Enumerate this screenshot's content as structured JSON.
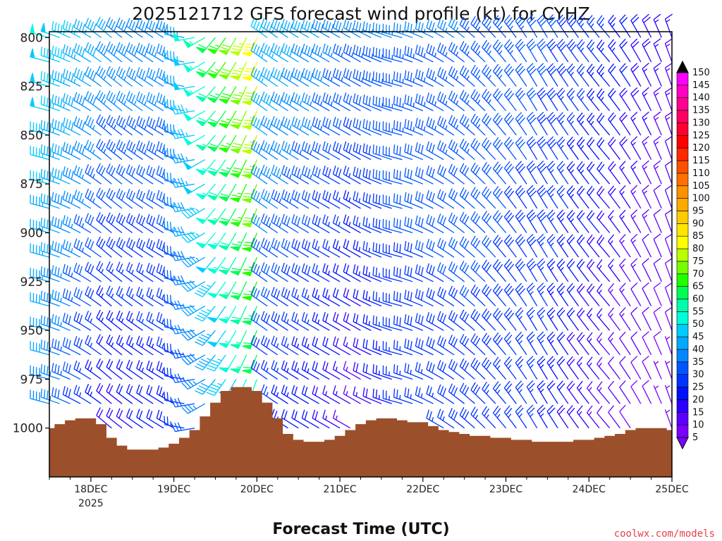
{
  "chart_data": {
    "type": "wind_profile",
    "title": "2025121712 GFS forecast wind profile (kt) for CYHZ",
    "xlabel": "Forecast Time (UTC)",
    "ylabel": "",
    "credit": "coolwx.com/models",
    "x_range_hours": [
      -12,
      168
    ],
    "x_ticks": [
      {
        "hour": 0,
        "label": "18DEC",
        "sublabel": "2025"
      },
      {
        "hour": 24,
        "label": "19DEC",
        "sublabel": ""
      },
      {
        "hour": 48,
        "label": "20DEC",
        "sublabel": ""
      },
      {
        "hour": 72,
        "label": "21DEC",
        "sublabel": ""
      },
      {
        "hour": 96,
        "label": "22DEC",
        "sublabel": ""
      },
      {
        "hour": 120,
        "label": "23DEC",
        "sublabel": ""
      },
      {
        "hour": 144,
        "label": "24DEC",
        "sublabel": ""
      },
      {
        "hour": 168,
        "label": "25DEC",
        "sublabel": ""
      }
    ],
    "y_axis": {
      "min_hpa": 797,
      "max_hpa": 1025,
      "inverted": true
    },
    "y_ticks": [
      "800",
      "825",
      "850",
      "875",
      "900",
      "925",
      "950",
      "975",
      "1000"
    ],
    "colorbar": {
      "levels": [
        5,
        10,
        15,
        20,
        25,
        30,
        35,
        40,
        45,
        50,
        55,
        60,
        65,
        70,
        75,
        80,
        85,
        90,
        95,
        100,
        105,
        110,
        115,
        120,
        125,
        130,
        135,
        140,
        145,
        150
      ],
      "colors": [
        "#7b00ff",
        "#5b00ff",
        "#2b00ff",
        "#0010ff",
        "#0033ff",
        "#0055ff",
        "#0088ff",
        "#00aaff",
        "#00ccff",
        "#00ffd8",
        "#00ffaa",
        "#00ff55",
        "#22ff00",
        "#77ff00",
        "#bbff00",
        "#ffff00",
        "#ffe600",
        "#ffcc00",
        "#ffaa00",
        "#ff9000",
        "#ff7000",
        "#ff5000",
        "#ff2800",
        "#ff0000",
        "#ff0030",
        "#ff0060",
        "#ff0090",
        "#ff00c0",
        "#ff00ff"
      ],
      "labels": [
        "5",
        "10",
        "15",
        "20",
        "25",
        "30",
        "35",
        "40",
        "45",
        "50",
        "55",
        "60",
        "65",
        "70",
        "75",
        "80",
        "85",
        "90",
        "95",
        "100",
        "105",
        "110",
        "115",
        "120",
        "125",
        "130",
        "135",
        "140",
        "145",
        "150"
      ]
    },
    "barb_levels_hpa": [
      800,
      812.5,
      825,
      837.5,
      850,
      862.5,
      875,
      887.5,
      900,
      912.5,
      925,
      937.5,
      950,
      962.5,
      975,
      987.5,
      1000
    ],
    "barb_times_hours": [
      -12,
      -9,
      -6,
      -3,
      0,
      3,
      6,
      9,
      12,
      15,
      18,
      21,
      24,
      27,
      30,
      33,
      36,
      39,
      42,
      45,
      48,
      51,
      54,
      57,
      60,
      63,
      66,
      69,
      72,
      75,
      78,
      81,
      84,
      87,
      90,
      93,
      96,
      99,
      102,
      105,
      108,
      111,
      114,
      117,
      120,
      123,
      126,
      129,
      132,
      135,
      138,
      141,
      144,
      147,
      150,
      153,
      156,
      159,
      162,
      165,
      168
    ],
    "wind_keyframes": [
      {
        "hour": -12,
        "dir": 285,
        "speed_low": 38,
        "speed_high": 50
      },
      {
        "hour": 6,
        "dir": 310,
        "speed_low": 18,
        "speed_high": 40
      },
      {
        "hour": 24,
        "dir": 300,
        "speed_low": 22,
        "speed_high": 38
      },
      {
        "hour": 36,
        "dir": 220,
        "speed_low": 38,
        "speed_high": 62
      },
      {
        "hour": 48,
        "dir": 200,
        "speed_low": 55,
        "speed_high": 82
      },
      {
        "hour": 51,
        "dir": 305,
        "speed_low": 25,
        "speed_high": 45
      },
      {
        "hour": 66,
        "dir": 300,
        "speed_low": 20,
        "speed_high": 40
      },
      {
        "hour": 78,
        "dir": 300,
        "speed_low": 12,
        "speed_high": 35
      },
      {
        "hour": 90,
        "dir": 285,
        "speed_low": 25,
        "speed_high": 35
      },
      {
        "hour": 110,
        "dir": 310,
        "speed_low": 28,
        "speed_high": 35
      },
      {
        "hour": 130,
        "dir": 330,
        "speed_low": 25,
        "speed_high": 32
      },
      {
        "hour": 150,
        "dir": 320,
        "speed_low": 12,
        "speed_high": 25
      },
      {
        "hour": 168,
        "dir": 340,
        "speed_low": 5,
        "speed_high": 15
      }
    ],
    "surface_pressure": {
      "hours": [
        -12,
        -9,
        -6,
        -3,
        0,
        3,
        6,
        9,
        12,
        15,
        18,
        21,
        24,
        27,
        30,
        33,
        36,
        39,
        42,
        45,
        48,
        51,
        54,
        57,
        60,
        63,
        66,
        69,
        72,
        75,
        78,
        81,
        84,
        87,
        90,
        93,
        96,
        99,
        102,
        105,
        108,
        111,
        114,
        117,
        120,
        123,
        126,
        129,
        132,
        135,
        138,
        141,
        144,
        147,
        150,
        153,
        156,
        159,
        162,
        165,
        168
      ],
      "hpa": [
        1000,
        998,
        996,
        995,
        995,
        998,
        1005,
        1009,
        1011,
        1011,
        1011,
        1010,
        1008,
        1005,
        1001,
        994,
        987,
        981,
        979,
        979,
        981,
        987,
        995,
        1003,
        1006,
        1007,
        1007,
        1006,
        1004,
        1001,
        998,
        996,
        995,
        995,
        996,
        997,
        997,
        999,
        1001,
        1002,
        1003,
        1004,
        1004,
        1005,
        1005,
        1006,
        1006,
        1007,
        1007,
        1007,
        1007,
        1006,
        1006,
        1005,
        1004,
        1003,
        1001,
        1000,
        1000,
        1000,
        1001
      ]
    }
  }
}
